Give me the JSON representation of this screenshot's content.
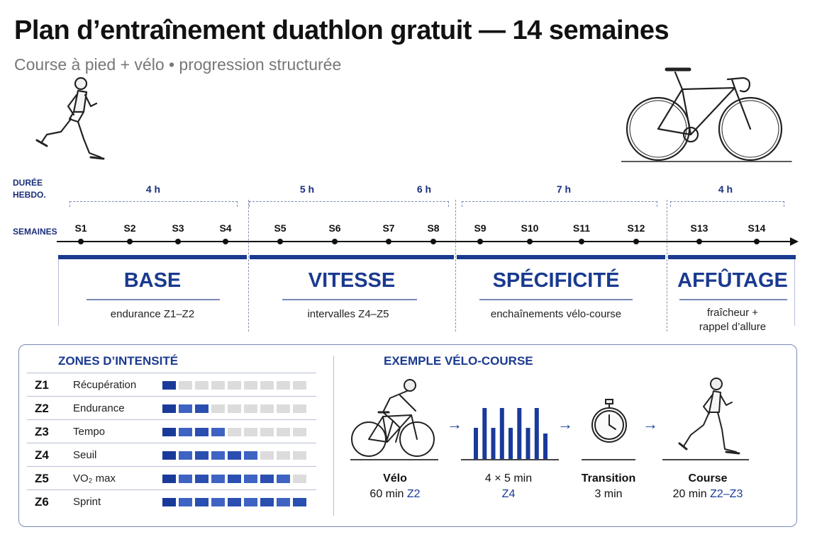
{
  "header": {
    "title": "Plan d’entraînement duathlon gratuit — 14 semaines",
    "subtitle": "Course à pied + vélo • progression structurée"
  },
  "timeline": {
    "duration_label_line1": "DURÉE",
    "duration_label_line2": "HEBDO.",
    "weeks_label": "SEMAINES",
    "hours": [
      {
        "label": "4 h"
      },
      {
        "label": "5 h"
      },
      {
        "label": "6 h"
      },
      {
        "label": "7 h"
      },
      {
        "label": "4 h"
      }
    ],
    "weeks": [
      "S1",
      "S2",
      "S3",
      "S4",
      "S5",
      "S6",
      "S7",
      "S8",
      "S9",
      "S10",
      "S11",
      "S12",
      "S13",
      "S14"
    ]
  },
  "phases": [
    {
      "name": "BASE",
      "desc": "endurance Z1–Z2"
    },
    {
      "name": "VITESSE",
      "desc": "intervalles Z4–Z5"
    },
    {
      "name": "SPÉCIFICITÉ",
      "desc": "enchaînements vélo-course"
    },
    {
      "name": "AFFÛTAGE",
      "desc_line1": "fraîcheur +",
      "desc_line2": "rappel d’allure"
    }
  ],
  "zones": {
    "title": "ZONES D’INTENSITÉ",
    "total_segments": 9,
    "items": [
      {
        "code": "Z1",
        "name": "Récupération",
        "level": 1
      },
      {
        "code": "Z2",
        "name": "Endurance",
        "level": 3
      },
      {
        "code": "Z3",
        "name": "Tempo",
        "level": 4
      },
      {
        "code": "Z4",
        "name": "Seuil",
        "level": 6
      },
      {
        "code": "Z5",
        "name": "VO₂ max",
        "level": 8
      },
      {
        "code": "Z6",
        "name": "Sprint",
        "level": 9
      }
    ]
  },
  "example": {
    "title": "EXEMPLE VÉLO-COURSE",
    "steps": [
      {
        "label": "Vélo",
        "sub_plain": "60 min ",
        "sub_blue": "Z2"
      },
      {
        "label": "4 × 5 min",
        "sub_plain": "",
        "sub_blue": "Z4"
      },
      {
        "label": "Transition",
        "sub_plain": "3 min",
        "sub_blue": ""
      },
      {
        "label": "Course",
        "sub_plain": "20 min ",
        "sub_blue": "Z2–Z3"
      }
    ],
    "interval_bars": [
      0.55,
      0.9,
      0.55,
      0.9,
      0.55,
      0.9,
      0.55,
      0.9,
      0.45
    ]
  },
  "colors": {
    "accent": "#1a3a8f",
    "zone_bar": "#1a3a9a",
    "zone_bar_light": "#3e63c2",
    "zone_bar_empty": "#dcdcdc"
  }
}
